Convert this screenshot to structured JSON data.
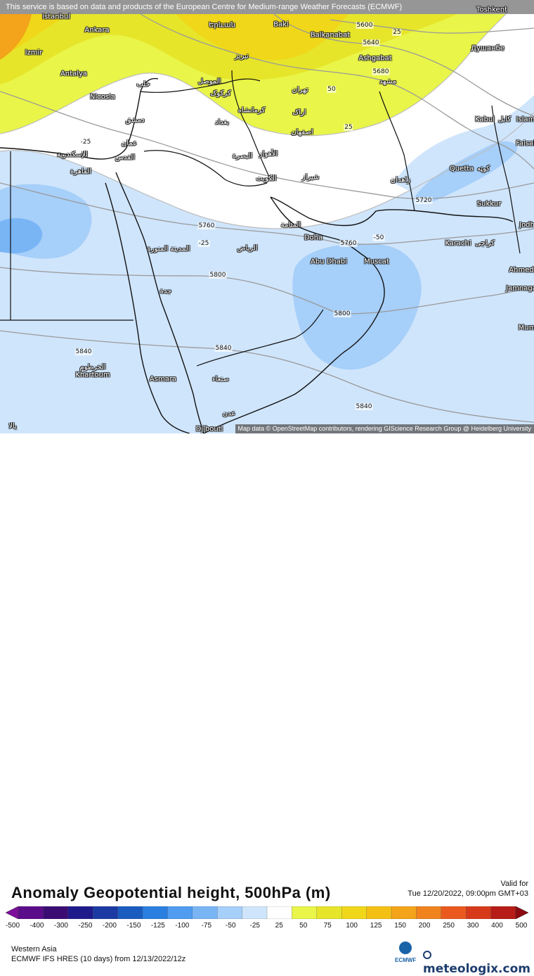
{
  "notice": "This service is based on data and products of the European Centre for Medium-range Weather Forecasts (ECMWF)",
  "map_attribution": "Map data © OpenStreetMap contributors, rendering GIScience Research Group @ Heidelberg University",
  "title": "Anomaly Geopotential height, 500hPa (m)",
  "valid_label": "Valid for",
  "valid_time": "Tue 12/20/2022, 09:00pm GMT+03",
  "region": "Western Asia",
  "model_run": "ECMWF IFS HRES (10 days) from 12/13/2022/12z",
  "brand": {
    "ecmwf_label": "ECMWF",
    "meteologix_label": "meteologix.com"
  },
  "colorbar": {
    "ticks": [
      "-500",
      "-400",
      "-300",
      "-250",
      "-200",
      "-150",
      "-125",
      "-100",
      "-75",
      "-50",
      "-25",
      "25",
      "50",
      "75",
      "100",
      "125",
      "150",
      "200",
      "250",
      "300",
      "400",
      "500"
    ],
    "colors": [
      "#7d0f9c",
      "#5a0c8a",
      "#3a0c74",
      "#1f1a8c",
      "#1b3aa3",
      "#1a5bbf",
      "#2a7fe0",
      "#4f9cf0",
      "#79b5f5",
      "#a6cff9",
      "#cfe5fc",
      "#ffffff",
      "#e9f548",
      "#e6e52a",
      "#f0d719",
      "#f4c014",
      "#f3a41a",
      "#f0831e",
      "#ea5a1f",
      "#d73a1a",
      "#b51d16",
      "#8c0a10"
    ]
  },
  "contour_labels": [
    {
      "text": "5600",
      "type": "height"
    },
    {
      "text": "25",
      "type": "anomaly"
    },
    {
      "text": "5640",
      "type": "height"
    },
    {
      "text": "5680",
      "type": "height"
    },
    {
      "text": "50",
      "type": "anomaly"
    },
    {
      "text": "25",
      "type": "anomaly"
    },
    {
      "text": "-25",
      "type": "anomaly"
    },
    {
      "text": "5720",
      "type": "height"
    },
    {
      "text": "5760",
      "type": "height"
    },
    {
      "text": "-25",
      "type": "anomaly"
    },
    {
      "text": "-50",
      "type": "anomaly"
    },
    {
      "text": "5760",
      "type": "height"
    },
    {
      "text": "5800",
      "type": "height"
    },
    {
      "text": "5800",
      "type": "height"
    },
    {
      "text": "5840",
      "type": "height"
    },
    {
      "text": "5840",
      "type": "height"
    },
    {
      "text": "5840",
      "type": "height"
    }
  ],
  "cities": [
    "Istanbul",
    "Ankara",
    "Izmir",
    "Antalya",
    "Nicosia",
    "Baki",
    "Balkanabat",
    "Ashgabat",
    "Toshkent",
    "Душанбе",
    "Kabul",
    "کابل",
    "Islam",
    "Faisal",
    "Quetta",
    "کوټه",
    "Sukkur",
    "Karachi",
    "کراچی",
    "Ahmed",
    "Jamnaga",
    "Mum",
    "Jodh",
    "Doha",
    "Abu Dhabi",
    "Muscat",
    "Asmara",
    "Khartoum",
    "الخرطوم",
    "صنعاء",
    "عدن",
    "Djibouti",
    "يالا",
    "Երևան",
    "تبریز",
    "تهران",
    "اراک",
    "اصفهان",
    "مشهد",
    "بغداد",
    "کرمانشاه",
    "کرکوک",
    "الموصل",
    "حلب",
    "دمشق",
    "عمان",
    "القدس",
    "الإسكندرية",
    "القاهرة",
    "الكويت",
    "البصرة",
    "الأهواز",
    "شیراز",
    "زاهدان",
    "المنامة",
    "الرياض",
    "المدينة المنورة",
    "جدة"
  ]
}
